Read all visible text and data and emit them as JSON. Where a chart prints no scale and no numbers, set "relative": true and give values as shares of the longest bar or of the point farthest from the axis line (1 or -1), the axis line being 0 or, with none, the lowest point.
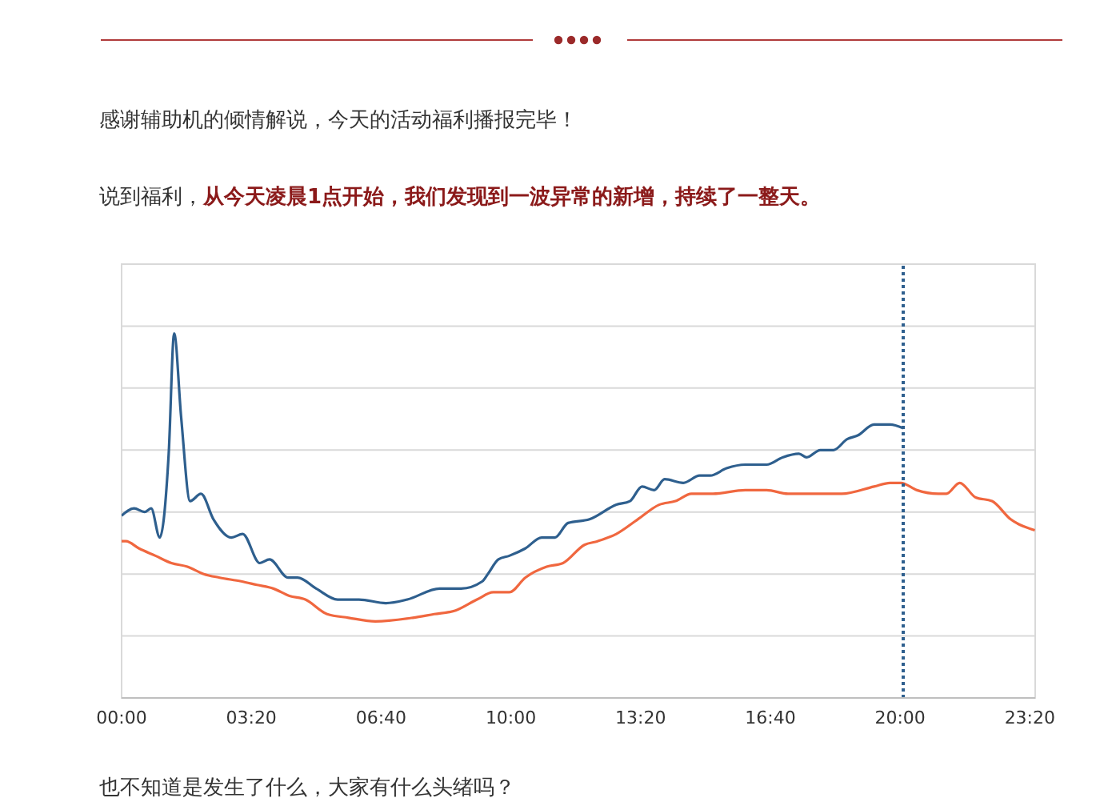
{
  "chart_data": {
    "type": "line",
    "relative": true,
    "annotations": [
      "感谢辅助机的倾情解说，今天的活动福利播报完毕！",
      "说到福利，",
      "从今天凌晨1点开始，我们发现到一波异常的新增，持续了一整天。",
      "也不知道是发生了什么，大家有什么头绪吗？"
    ],
    "xlim": [
      0,
      23.47
    ],
    "xticks": [
      {
        "value": 0,
        "label": "00:00"
      },
      {
        "value": 3.333,
        "label": "03:20"
      },
      {
        "value": 6.667,
        "label": "06:40"
      },
      {
        "value": 10,
        "label": "10:00"
      },
      {
        "value": 13.333,
        "label": "13:20"
      },
      {
        "value": 16.667,
        "label": "16:40"
      },
      {
        "value": 20,
        "label": "20:00"
      },
      {
        "value": 23.333,
        "label": "23:20"
      }
    ],
    "grid": "y",
    "legend": false,
    "marker": "none",
    "line_style": "solid",
    "ref_lines": [
      {
        "axis": "x",
        "value": 20.08,
        "color": "#2e5f8e",
        "line_style": "dotted"
      }
    ],
    "series": [
      {
        "color": "#2e5f8e",
        "x": [
          0,
          0.32,
          0.59,
          0.76,
          0.98,
          1.21,
          1.35,
          1.53,
          1.76,
          2.04,
          2.36,
          2.82,
          3.11,
          3.55,
          3.8,
          4.28,
          4.52,
          5,
          5.55,
          6.1,
          6.79,
          7.34,
          8.17,
          8.72,
          9.27,
          9.41,
          9.68,
          9.96,
          10.37,
          10.79,
          11.13,
          11.47,
          12.02,
          12.71,
          13.06,
          13.37,
          13.68,
          13.95,
          14.43,
          14.85,
          15.12,
          15.54,
          16.02,
          16.57,
          16.98,
          17.4,
          17.6,
          17.95,
          18.29,
          18.64,
          18.91,
          19.33,
          19.74,
          20.08
        ],
        "values": [
          0.5,
          0.52,
          0.51,
          0.52,
          0.44,
          0.67,
          1,
          0.77,
          0.54,
          0.56,
          0.49,
          0.44,
          0.45,
          0.37,
          0.38,
          0.33,
          0.33,
          0.3,
          0.27,
          0.27,
          0.26,
          0.27,
          0.3,
          0.3,
          0.32,
          0.34,
          0.38,
          0.39,
          0.41,
          0.44,
          0.44,
          0.48,
          0.49,
          0.53,
          0.54,
          0.58,
          0.57,
          0.6,
          0.59,
          0.61,
          0.61,
          0.63,
          0.64,
          0.64,
          0.66,
          0.67,
          0.66,
          0.68,
          0.68,
          0.71,
          0.72,
          0.75,
          0.75,
          0.74
        ]
      },
      {
        "color": "#f0673f",
        "x": [
          0,
          0.11,
          0.45,
          0.87,
          1.28,
          1.69,
          2.11,
          2.52,
          3.07,
          3.48,
          3.9,
          4.31,
          4.72,
          5.28,
          5.83,
          6.52,
          7.48,
          8.03,
          8.58,
          9.13,
          9.55,
          9.96,
          10.37,
          10.92,
          11.34,
          11.89,
          12.23,
          12.71,
          13.26,
          13.81,
          14.23,
          14.64,
          15.19,
          16.02,
          16.57,
          17.12,
          17.67,
          18.5,
          19.33,
          19.74,
          20.02,
          20.43,
          20.98,
          21.19,
          21.53,
          21.94,
          22.36,
          22.84,
          23.46
        ],
        "values": [
          0.43,
          0.43,
          0.41,
          0.39,
          0.37,
          0.36,
          0.34,
          0.33,
          0.32,
          0.31,
          0.3,
          0.28,
          0.27,
          0.23,
          0.22,
          0.21,
          0.22,
          0.23,
          0.24,
          0.27,
          0.29,
          0.29,
          0.33,
          0.36,
          0.37,
          0.42,
          0.43,
          0.45,
          0.49,
          0.53,
          0.54,
          0.56,
          0.56,
          0.57,
          0.57,
          0.56,
          0.56,
          0.56,
          0.58,
          0.59,
          0.59,
          0.57,
          0.56,
          0.56,
          0.59,
          0.55,
          0.54,
          0.49,
          0.46
        ]
      }
    ]
  }
}
